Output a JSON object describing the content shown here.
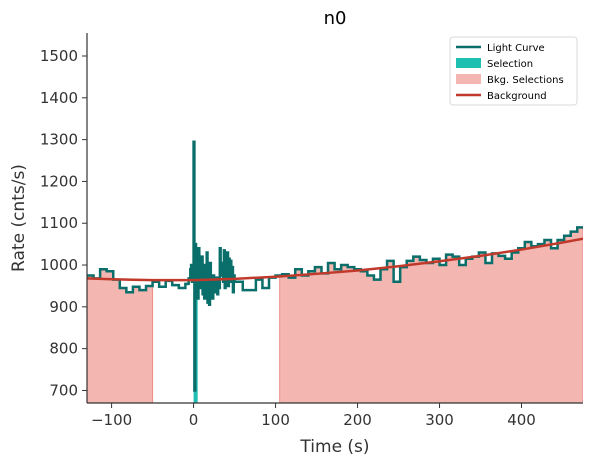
{
  "chart_data": {
    "type": "line",
    "title": "n0",
    "xlabel": "Time (s)",
    "ylabel": "Rate (cnts/s)",
    "xlim": [
      -130,
      475
    ],
    "ylim": [
      670,
      1555
    ],
    "xticks": [
      -100,
      0,
      100,
      200,
      300,
      400
    ],
    "yticks": [
      700,
      800,
      900,
      1000,
      1100,
      1200,
      1300,
      1400,
      1500
    ],
    "grid": false,
    "legend_position": "top-right",
    "colors": {
      "light_curve": "#0a6e6a",
      "selection": "#1fbfb2",
      "bkg_selection_fill": "#f3b6b1",
      "bkg_selection_edge": "#f08f86",
      "background": "#c0392b"
    },
    "legend": [
      {
        "label": "Light Curve",
        "kind": "line",
        "color": "#0a6e6a"
      },
      {
        "label": "Selection",
        "kind": "patch",
        "color": "#1fbfb2"
      },
      {
        "label": "Bkg. Selections",
        "kind": "patch",
        "color": "#f3b6b1"
      },
      {
        "label": "Background",
        "kind": "line",
        "color": "#c0392b"
      }
    ],
    "series": [
      {
        "name": "Light Curve",
        "kind": "step",
        "x": [
          -130,
          -122,
          -114,
          -106,
          -98,
          -90,
          -82,
          -74,
          -66,
          -58,
          -50,
          -42,
          -34,
          -26,
          -18,
          -10,
          -6,
          -4,
          -3,
          -2,
          -1,
          0,
          1,
          2,
          3,
          4,
          5,
          6,
          7,
          8,
          9,
          10,
          11,
          12,
          13,
          14,
          15,
          16,
          17,
          18,
          19,
          20,
          21,
          22,
          23,
          24,
          25,
          26,
          27,
          28,
          29,
          30,
          31,
          32,
          33,
          34,
          35,
          36,
          37,
          38,
          39,
          40,
          41,
          42,
          43,
          44,
          45,
          46,
          47,
          48,
          49,
          50,
          60,
          68,
          76,
          84,
          92,
          100,
          108,
          116,
          124,
          132,
          140,
          148,
          156,
          164,
          172,
          180,
          188,
          196,
          204,
          212,
          220,
          228,
          236,
          244,
          252,
          260,
          268,
          276,
          284,
          292,
          300,
          308,
          316,
          324,
          332,
          340,
          348,
          356,
          364,
          372,
          380,
          388,
          396,
          404,
          412,
          420,
          428,
          436,
          444,
          452,
          460,
          468
        ],
        "y": [
          975,
          968,
          990,
          985,
          965,
          945,
          935,
          948,
          940,
          950,
          960,
          948,
          962,
          952,
          945,
          955,
          968,
          990,
          1000,
          960,
          985,
          1295,
          700,
          1050,
          940,
          1035,
          920,
          1040,
          970,
          1015,
          945,
          1020,
          930,
          1000,
          920,
          995,
          955,
          1030,
          910,
          980,
          905,
          1005,
          940,
          960,
          920,
          975,
          935,
          965,
          950,
          970,
          930,
          960,
          945,
          1040,
          975,
          985,
          1005,
          960,
          1035,
          945,
          1020,
          990,
          1030,
          950,
          1015,
          960,
          1010,
          970,
          995,
          935,
          975,
          960,
          940,
          940,
          965,
          945,
          970,
          975,
          978,
          970,
          990,
          975,
          985,
          995,
          980,
          1005,
          990,
          1000,
          995,
          990,
          985,
          975,
          965,
          990,
          1010,
          960,
          995,
          1010,
          1020,
          1012,
          1005,
          1015,
          1000,
          1025,
          1020,
          1000,
          1015,
          1020,
          1030,
          1005,
          1028,
          1022,
          1015,
          1030,
          1040,
          1055,
          1045,
          1050,
          1060,
          1040,
          1060,
          1070,
          1080,
          1090
        ]
      },
      {
        "name": "Background",
        "kind": "curve",
        "x": [
          -130,
          -100,
          -50,
          0,
          50,
          100,
          150,
          200,
          250,
          300,
          350,
          400,
          450,
          475
        ],
        "y": [
          968,
          966,
          964,
          964,
          967,
          972,
          979,
          987,
          997,
          1009,
          1022,
          1037,
          1054,
          1063
        ]
      }
    ],
    "selection": {
      "xmin": 0,
      "xmax": 5
    },
    "bkg_selections": [
      {
        "xmin": -130,
        "xmax": -50
      },
      {
        "xmin": 105,
        "xmax": 475
      }
    ]
  }
}
